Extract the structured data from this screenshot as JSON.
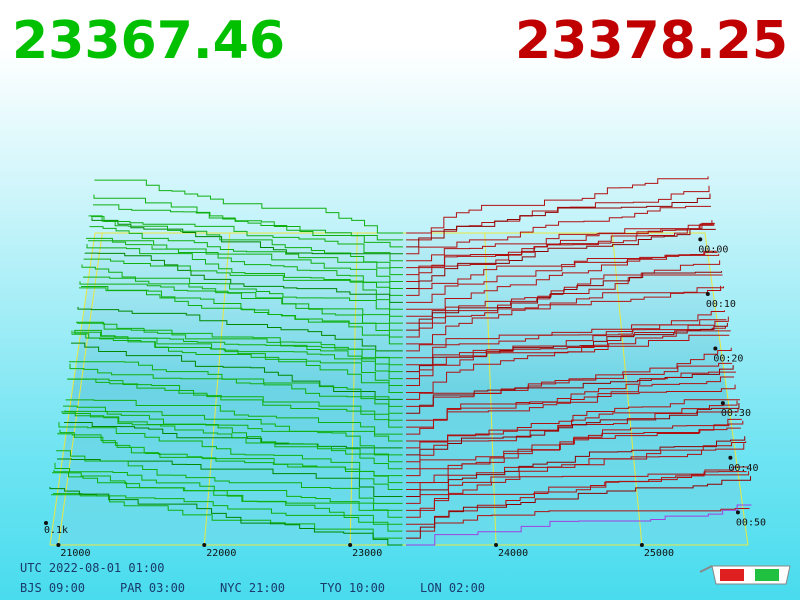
{
  "header": {
    "bid": "23367.46",
    "ask": "23378.25"
  },
  "price_axis": {
    "ticks": [
      "21000",
      "22000",
      "23000",
      "24000",
      "25000"
    ]
  },
  "time_axis": {
    "ticks": [
      "00:00",
      "00:10",
      "00:20",
      "00:30",
      "00:40",
      "00:50"
    ]
  },
  "volume_label": "0.1k",
  "footer": {
    "utc": "UTC 2022-08-01 01:00",
    "cities": [
      "BJS 09:00",
      "PAR 03:00",
      "NYC 21:00",
      "TYO 10:00",
      "LON 02:00"
    ]
  }
}
